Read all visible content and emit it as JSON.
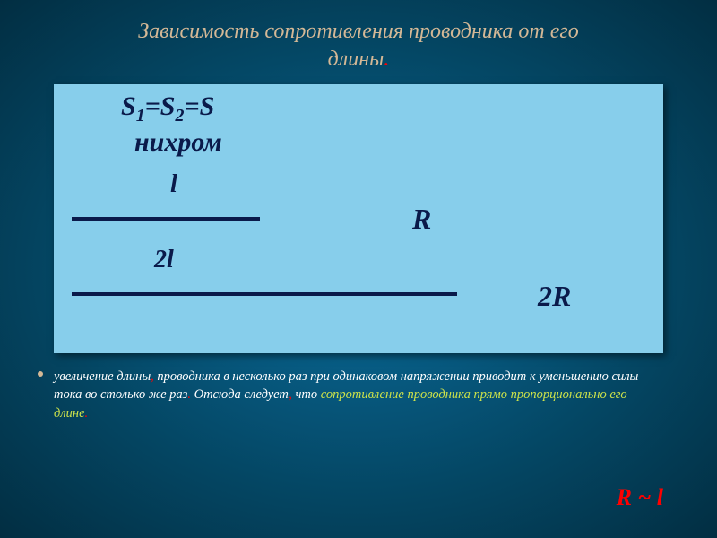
{
  "slide": {
    "title_line1": "Зависимость сопротивления проводника от его",
    "title_line2": "длины",
    "title_dot": ".",
    "background": "#0a6b9a",
    "box_background": "#87ceeb",
    "text_color_dark": "#0a1a4a",
    "title_color": "#d4b896",
    "highlight_color": "#cde24a",
    "red_color": "#ff0000",
    "equations": {
      "s_eq_parts": {
        "s1": "S",
        "sub1": "1",
        "eq1": "=",
        "s2": "S",
        "sub2": "2",
        "eq2": "=S"
      },
      "material": "нихром",
      "l": "l",
      "R": "R",
      "two_l": "2l",
      "two_R": "2R"
    },
    "bullet": {
      "part1": "увеличение длины",
      "comma1": ",",
      "part2": " проводника в несколько раз при одинаковом напряжении приводит к уменьшению силы тока во столько же раз",
      "comma2": ".",
      "part3": " Отсюда следует",
      "comma3": ",",
      "part4": " что ",
      "hl": "сопротивление проводника прямо пропорционально его длине",
      "comma4": "."
    },
    "formula_bottom": "R ~ l"
  }
}
